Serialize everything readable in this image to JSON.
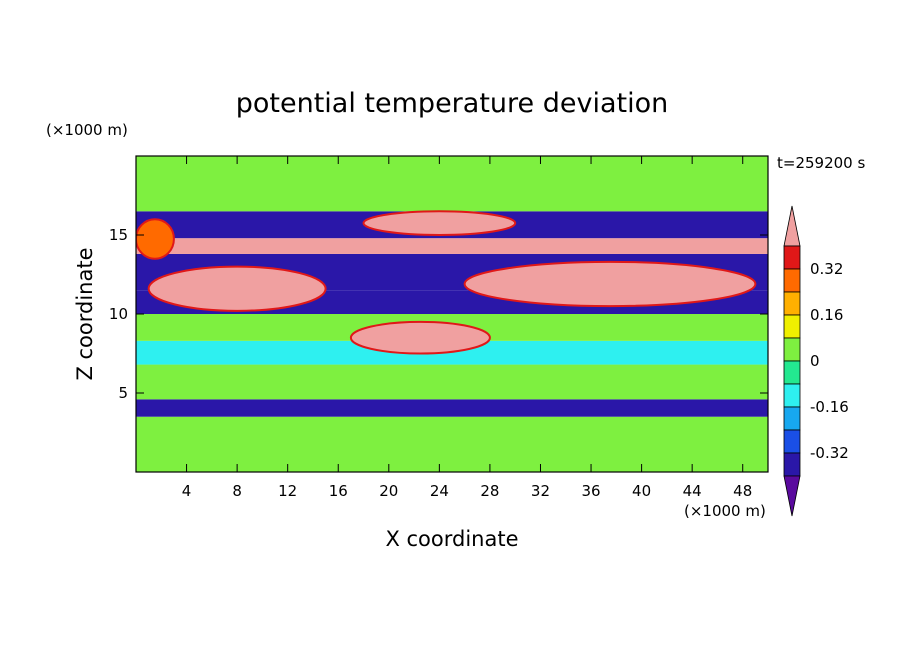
{
  "chart_data": {
    "type": "heatmap",
    "title": "potential temperature deviation",
    "xlabel": "X coordinate",
    "ylabel": "Z coordinate",
    "x_unit": "(×1000 m)",
    "y_unit": "(×1000 m)",
    "time_label": "t=259200 s",
    "xlim": [
      0,
      50
    ],
    "ylim": [
      0,
      20
    ],
    "x_ticks": [
      4,
      8,
      12,
      16,
      20,
      24,
      28,
      32,
      36,
      40,
      44,
      48
    ],
    "y_ticks": [
      5,
      10,
      15
    ],
    "colorbar": {
      "tick_labels": [
        "0.32",
        "0.16",
        "0",
        "-0.16",
        "-0.32"
      ],
      "tick_values": [
        0.32,
        0.16,
        0,
        -0.16,
        -0.32
      ],
      "levels": [
        -0.4,
        -0.32,
        -0.24,
        -0.16,
        -0.08,
        0,
        0.08,
        0.16,
        0.24,
        0.32,
        0.4
      ],
      "colors": [
        "#5a0a9e",
        "#2a17a8",
        "#1a4fe6",
        "#17a8f0",
        "#2ef0f0",
        "#23e890",
        "#7ef040",
        "#f0f000",
        "#ffb000",
        "#ff6a00",
        "#e01818",
        "#f0a0a0"
      ]
    },
    "bands": [
      {
        "z": [
          0.0,
          3.5
        ],
        "value": 0.0
      },
      {
        "z": [
          3.5,
          4.6
        ],
        "value": -0.34
      },
      {
        "z": [
          4.6,
          6.8
        ],
        "value": 0.03
      },
      {
        "z": [
          6.8,
          8.3
        ],
        "value": -0.12
      },
      {
        "z": [
          8.3,
          10.0
        ],
        "value": 0.02
      },
      {
        "z": [
          10.0,
          11.5
        ],
        "value": -0.36
      },
      {
        "z": [
          11.5,
          13.8
        ],
        "value": -0.38
      },
      {
        "z": [
          13.8,
          14.8
        ],
        "value": 0.42
      },
      {
        "z": [
          14.8,
          16.5
        ],
        "value": -0.38
      },
      {
        "z": [
          16.5,
          20.0
        ],
        "value": 0.05
      }
    ],
    "features": [
      {
        "x": [
          1,
          15
        ],
        "z": [
          10.2,
          13.0
        ],
        "value": 0.42
      },
      {
        "x": [
          26,
          49
        ],
        "z": [
          10.5,
          13.3
        ],
        "value": 0.42
      },
      {
        "x": [
          18,
          30
        ],
        "z": [
          15.0,
          16.5
        ],
        "value": 0.42
      },
      {
        "x": [
          17,
          28
        ],
        "z": [
          7.5,
          9.5
        ],
        "value": 0.42
      },
      {
        "x": [
          0,
          3
        ],
        "z": [
          13.5,
          16.0
        ],
        "value": 0.3
      }
    ]
  }
}
